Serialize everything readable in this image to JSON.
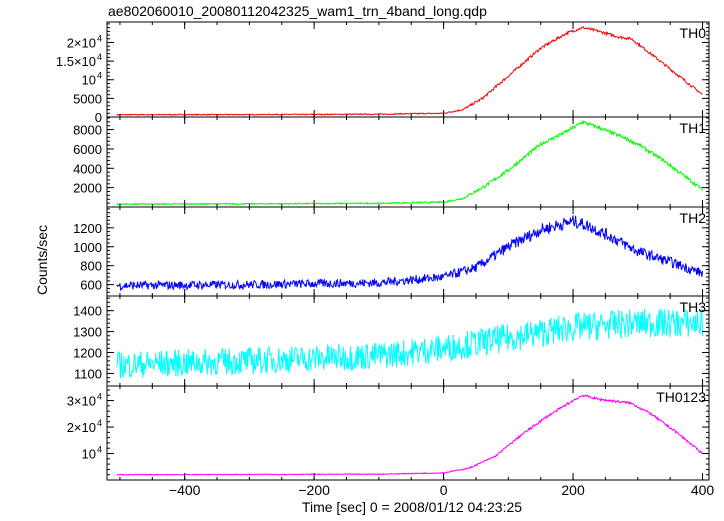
{
  "title": "ae802060010_20080112042325_wam1_trn_4band_long.qdp",
  "ylabel": "Counts/sec",
  "xlabel": "Time [sec] 0 = 2008/01/12 04:23:25",
  "chart_data": {
    "type": "line",
    "title": "ae802060010_20080112042325_wam1_trn_4band_long.qdp",
    "xlabel": "Time [sec] 0 = 2008/01/12 04:23:25",
    "ylabel": "Counts/sec",
    "xlim": [
      -520,
      410
    ],
    "x_ticks": [
      -400,
      -200,
      0,
      200,
      400
    ],
    "x_tick_labels": [
      "−400",
      "−200",
      "0",
      "200",
      "400"
    ],
    "panels": [
      {
        "name": "TH0",
        "color": "#ff0000",
        "ylim": [
          0,
          25500
        ],
        "y_ticks": [
          {
            "value": 0,
            "label": "0",
            "exp": ""
          },
          {
            "value": 5000,
            "label": "5000",
            "exp": ""
          },
          {
            "value": 10000,
            "label": "10",
            "exp": "4"
          },
          {
            "value": 15000,
            "label": "1.5×10",
            "exp": "4"
          },
          {
            "value": 20000,
            "label": "2×10",
            "exp": "4"
          }
        ],
        "noise": 120,
        "points": [
          [
            -505,
            600
          ],
          [
            -300,
            650
          ],
          [
            -100,
            750
          ],
          [
            0,
            1000
          ],
          [
            30,
            2000
          ],
          [
            60,
            5000
          ],
          [
            100,
            11000
          ],
          [
            150,
            18500
          ],
          [
            190,
            22500
          ],
          [
            215,
            24000
          ],
          [
            240,
            23000
          ],
          [
            270,
            21500
          ],
          [
            290,
            21000
          ],
          [
            320,
            17000
          ],
          [
            360,
            11500
          ],
          [
            400,
            6000
          ]
        ]
      },
      {
        "name": "TH1",
        "color": "#00ff00",
        "ylim": [
          0,
          9300
        ],
        "y_ticks": [
          {
            "value": 2000,
            "label": "2000",
            "exp": ""
          },
          {
            "value": 4000,
            "label": "4000",
            "exp": ""
          },
          {
            "value": 6000,
            "label": "6000",
            "exp": ""
          },
          {
            "value": 8000,
            "label": "8000",
            "exp": ""
          }
        ],
        "noise": 60,
        "points": [
          [
            -505,
            300
          ],
          [
            -300,
            320
          ],
          [
            -100,
            380
          ],
          [
            0,
            500
          ],
          [
            30,
            900
          ],
          [
            60,
            2000
          ],
          [
            100,
            3800
          ],
          [
            150,
            6500
          ],
          [
            190,
            7800
          ],
          [
            215,
            8800
          ],
          [
            240,
            8200
          ],
          [
            270,
            7400
          ],
          [
            300,
            6500
          ],
          [
            340,
            4800
          ],
          [
            400,
            1800
          ]
        ]
      },
      {
        "name": "TH2",
        "color": "#0000ff",
        "ylim": [
          480,
          1420
        ],
        "y_ticks": [
          {
            "value": 600,
            "label": "600",
            "exp": ""
          },
          {
            "value": 800,
            "label": "800",
            "exp": ""
          },
          {
            "value": 1000,
            "label": "1000",
            "exp": ""
          },
          {
            "value": 1200,
            "label": "1200",
            "exp": ""
          }
        ],
        "noise": 45,
        "points": [
          [
            -505,
            590
          ],
          [
            -300,
            600
          ],
          [
            -100,
            620
          ],
          [
            0,
            680
          ],
          [
            50,
            780
          ],
          [
            100,
            1000
          ],
          [
            150,
            1180
          ],
          [
            200,
            1270
          ],
          [
            220,
            1230
          ],
          [
            260,
            1100
          ],
          [
            300,
            950
          ],
          [
            350,
            840
          ],
          [
            400,
            720
          ]
        ]
      },
      {
        "name": "TH3",
        "color": "#00ffff",
        "ylim": [
          1040,
          1470
        ],
        "y_ticks": [
          {
            "value": 1100,
            "label": "1100",
            "exp": ""
          },
          {
            "value": 1200,
            "label": "1200",
            "exp": ""
          },
          {
            "value": 1300,
            "label": "1300",
            "exp": ""
          },
          {
            "value": 1400,
            "label": "1400",
            "exp": ""
          }
        ],
        "noise": 65,
        "points": [
          [
            -505,
            1140
          ],
          [
            -300,
            1160
          ],
          [
            -100,
            1185
          ],
          [
            0,
            1220
          ],
          [
            100,
            1270
          ],
          [
            200,
            1320
          ],
          [
            300,
            1340
          ],
          [
            400,
            1340
          ]
        ]
      },
      {
        "name": "TH0123",
        "color": "#ff00ff",
        "ylim": [
          0,
          35500
        ],
        "y_ticks": [
          {
            "value": 10000,
            "label": "10",
            "exp": "4"
          },
          {
            "value": 20000,
            "label": "2×10",
            "exp": "4"
          },
          {
            "value": 30000,
            "label": "3×10",
            "exp": "4"
          }
        ],
        "noise": 150,
        "points": [
          [
            -505,
            2000
          ],
          [
            -300,
            2100
          ],
          [
            -100,
            2200
          ],
          [
            0,
            2700
          ],
          [
            40,
            4500
          ],
          [
            80,
            9000
          ],
          [
            120,
            17000
          ],
          [
            160,
            24000
          ],
          [
            200,
            30000
          ],
          [
            215,
            32000
          ],
          [
            240,
            30500
          ],
          [
            290,
            29000
          ],
          [
            320,
            25000
          ],
          [
            360,
            18000
          ],
          [
            400,
            10000
          ]
        ]
      }
    ]
  }
}
